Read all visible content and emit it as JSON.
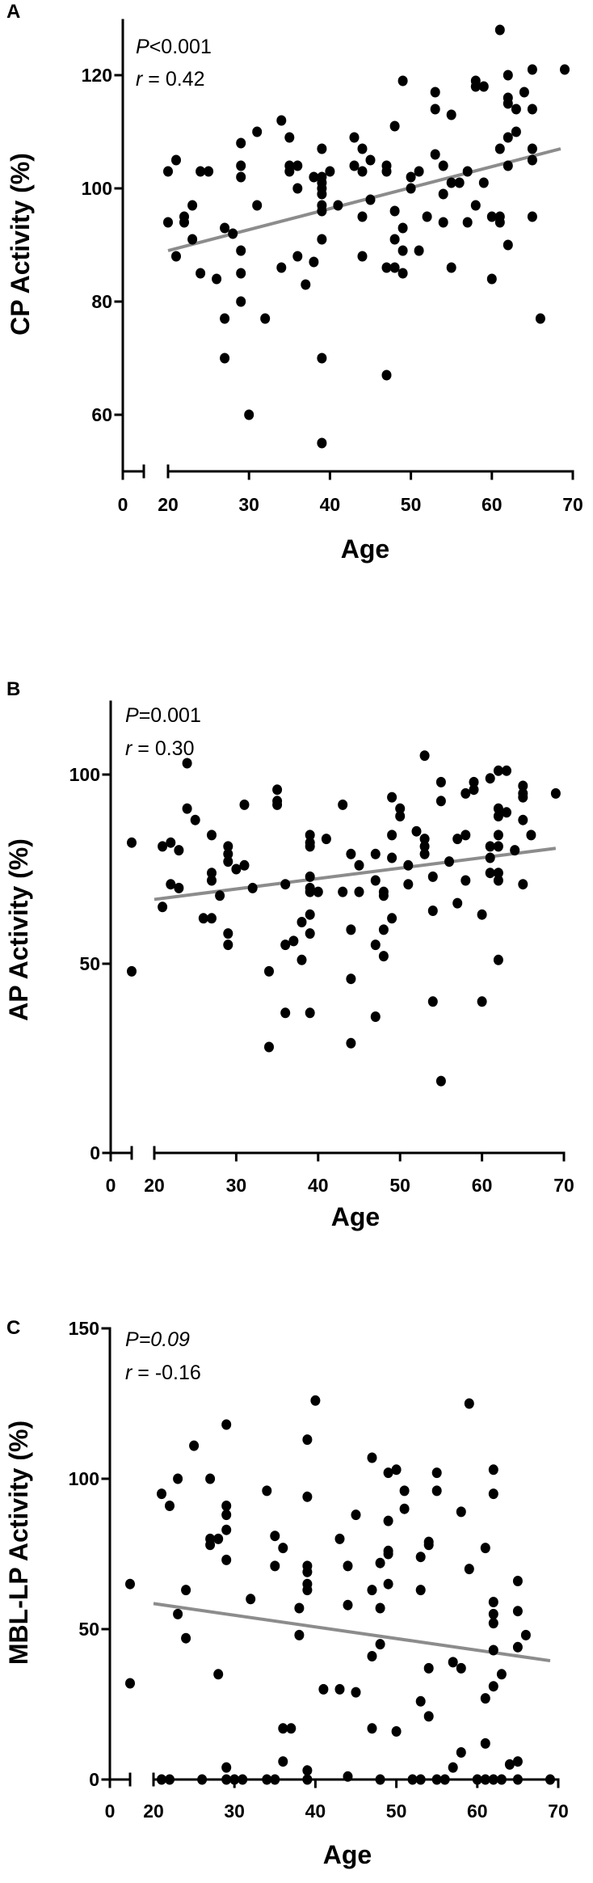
{
  "figure": {
    "panels": [
      "A",
      "B",
      "C"
    ]
  },
  "chart_data": [
    {
      "panel": "A",
      "type": "scatter",
      "title": "",
      "xlabel": "Age",
      "ylabel": "CP Activity (%)",
      "annotation": {
        "p_prefix": "P",
        "p_text": "<0.001",
        "p_italic_value": false,
        "r_prefix": "r",
        "r_text": " = 0.42"
      },
      "xticks": [
        0,
        20,
        30,
        40,
        50,
        60,
        70
      ],
      "yticks": [
        60,
        80,
        100,
        120
      ],
      "xlim_break": [
        0,
        20
      ],
      "xlim": [
        20,
        70
      ],
      "ylim": [
        47.5,
        130
      ],
      "grid": false,
      "regression_line": {
        "x": [
          20,
          68.5
        ],
        "y": [
          89,
          107
        ],
        "color": "#8c8c8c"
      },
      "points": [
        [
          20,
          94
        ],
        [
          20,
          103
        ],
        [
          21,
          105
        ],
        [
          21,
          88
        ],
        [
          22,
          95
        ],
        [
          22,
          94
        ],
        [
          23,
          97
        ],
        [
          23,
          91
        ],
        [
          24,
          103
        ],
        [
          24,
          85
        ],
        [
          25,
          103
        ],
        [
          26,
          84
        ],
        [
          27,
          93
        ],
        [
          27,
          77
        ],
        [
          27,
          70
        ],
        [
          28,
          92
        ],
        [
          29,
          108
        ],
        [
          29,
          104
        ],
        [
          29,
          102
        ],
        [
          29,
          89
        ],
        [
          29,
          85
        ],
        [
          29,
          80
        ],
        [
          30,
          60
        ],
        [
          31,
          110
        ],
        [
          31,
          97
        ],
        [
          32,
          77
        ],
        [
          34,
          112
        ],
        [
          34,
          86
        ],
        [
          35,
          109
        ],
        [
          35,
          104
        ],
        [
          35,
          103
        ],
        [
          36,
          104
        ],
        [
          36,
          100
        ],
        [
          36,
          88
        ],
        [
          37,
          83
        ],
        [
          38,
          102
        ],
        [
          38,
          87
        ],
        [
          39,
          107
        ],
        [
          39,
          102
        ],
        [
          39,
          101
        ],
        [
          39,
          100
        ],
        [
          39,
          99
        ],
        [
          39,
          97
        ],
        [
          39,
          96
        ],
        [
          39,
          91
        ],
        [
          39,
          70
        ],
        [
          39,
          55
        ],
        [
          40,
          103
        ],
        [
          41,
          97
        ],
        [
          43,
          109
        ],
        [
          43,
          104
        ],
        [
          44,
          107
        ],
        [
          44,
          103
        ],
        [
          44,
          95
        ],
        [
          44,
          88
        ],
        [
          45,
          105
        ],
        [
          45,
          98
        ],
        [
          47,
          104
        ],
        [
          47,
          103
        ],
        [
          47,
          86
        ],
        [
          47,
          67
        ],
        [
          48,
          111
        ],
        [
          48,
          96
        ],
        [
          48,
          91
        ],
        [
          48,
          86
        ],
        [
          49,
          119
        ],
        [
          49,
          93
        ],
        [
          49,
          89
        ],
        [
          49,
          85
        ],
        [
          50,
          102
        ],
        [
          50,
          100
        ],
        [
          51,
          103
        ],
        [
          51,
          89
        ],
        [
          52,
          95
        ],
        [
          53,
          117
        ],
        [
          53,
          114
        ],
        [
          53,
          106
        ],
        [
          54,
          104
        ],
        [
          54,
          99
        ],
        [
          54,
          94
        ],
        [
          55,
          113
        ],
        [
          55,
          101
        ],
        [
          55,
          86
        ],
        [
          56,
          101
        ],
        [
          57,
          103
        ],
        [
          57,
          94
        ],
        [
          58,
          119
        ],
        [
          58,
          118
        ],
        [
          58,
          97
        ],
        [
          59,
          118
        ],
        [
          59,
          101
        ],
        [
          60,
          95
        ],
        [
          60,
          84
        ],
        [
          61,
          128
        ],
        [
          61,
          107
        ],
        [
          61,
          95
        ],
        [
          61,
          94
        ],
        [
          62,
          120
        ],
        [
          62,
          116
        ],
        [
          62,
          115
        ],
        [
          62,
          109
        ],
        [
          62,
          104
        ],
        [
          62,
          90
        ],
        [
          63,
          114
        ],
        [
          63,
          110
        ],
        [
          64,
          117
        ],
        [
          65,
          121
        ],
        [
          65,
          114
        ],
        [
          65,
          107
        ],
        [
          65,
          105
        ],
        [
          65,
          95
        ],
        [
          66,
          77
        ],
        [
          69,
          121
        ]
      ]
    },
    {
      "panel": "B",
      "type": "scatter",
      "title": "",
      "xlabel": "Age",
      "ylabel": "AP Activity (%)",
      "annotation": {
        "p_prefix": "P",
        "p_text": "=0.001",
        "p_italic_value": false,
        "r_prefix": "r",
        "r_text": " = 0.30"
      },
      "xticks": [
        0,
        20,
        30,
        40,
        50,
        60,
        70
      ],
      "yticks": [
        0,
        50,
        100
      ],
      "xlim_break": [
        0,
        20
      ],
      "xlim": [
        20,
        70
      ],
      "ylim": [
        0,
        120
      ],
      "grid": false,
      "regression_line": {
        "x": [
          20,
          69
        ],
        "y": [
          67,
          80.5
        ],
        "color": "#8c8c8c"
      },
      "points": [
        [
          17,
          82
        ],
        [
          17,
          48
        ],
        [
          21,
          81
        ],
        [
          21,
          65
        ],
        [
          22,
          82
        ],
        [
          22,
          71
        ],
        [
          23,
          80
        ],
        [
          23,
          70
        ],
        [
          24,
          103
        ],
        [
          24,
          91
        ],
        [
          25,
          88
        ],
        [
          26,
          62
        ],
        [
          27,
          84
        ],
        [
          27,
          74
        ],
        [
          27,
          72
        ],
        [
          27,
          62
        ],
        [
          28,
          68
        ],
        [
          29,
          81
        ],
        [
          29,
          79
        ],
        [
          29,
          77
        ],
        [
          29,
          58
        ],
        [
          29,
          55
        ],
        [
          30,
          75
        ],
        [
          31,
          92
        ],
        [
          31,
          76
        ],
        [
          32,
          70
        ],
        [
          34,
          48
        ],
        [
          34,
          28
        ],
        [
          35,
          96
        ],
        [
          35,
          93
        ],
        [
          35,
          92
        ],
        [
          36,
          71
        ],
        [
          36,
          55
        ],
        [
          36,
          37
        ],
        [
          37,
          56
        ],
        [
          38,
          61
        ],
        [
          38,
          51
        ],
        [
          39,
          84
        ],
        [
          39,
          82
        ],
        [
          39,
          81
        ],
        [
          39,
          73
        ],
        [
          39,
          70
        ],
        [
          39,
          69
        ],
        [
          39,
          63
        ],
        [
          39,
          58
        ],
        [
          39,
          37
        ],
        [
          40,
          69
        ],
        [
          41,
          83
        ],
        [
          43,
          92
        ],
        [
          43,
          69
        ],
        [
          44,
          79
        ],
        [
          44,
          59
        ],
        [
          44,
          46
        ],
        [
          44,
          29
        ],
        [
          45,
          76
        ],
        [
          45,
          69
        ],
        [
          47,
          79
        ],
        [
          47,
          72
        ],
        [
          47,
          55
        ],
        [
          47,
          36
        ],
        [
          48,
          69
        ],
        [
          48,
          68
        ],
        [
          48,
          59
        ],
        [
          48,
          52
        ],
        [
          49,
          94
        ],
        [
          49,
          84
        ],
        [
          49,
          78
        ],
        [
          49,
          62
        ],
        [
          50,
          91
        ],
        [
          50,
          89
        ],
        [
          51,
          76
        ],
        [
          51,
          71
        ],
        [
          52,
          85
        ],
        [
          53,
          105
        ],
        [
          53,
          83
        ],
        [
          53,
          81
        ],
        [
          53,
          79
        ],
        [
          54,
          73
        ],
        [
          54,
          64
        ],
        [
          54,
          40
        ],
        [
          55,
          98
        ],
        [
          55,
          93
        ],
        [
          55,
          19
        ],
        [
          56,
          77
        ],
        [
          57,
          83
        ],
        [
          57,
          66
        ],
        [
          58,
          95
        ],
        [
          58,
          84
        ],
        [
          58,
          72
        ],
        [
          59,
          98
        ],
        [
          59,
          96
        ],
        [
          60,
          63
        ],
        [
          60,
          40
        ],
        [
          61,
          99
        ],
        [
          61,
          81
        ],
        [
          61,
          78
        ],
        [
          61,
          74
        ],
        [
          62,
          101
        ],
        [
          62,
          91
        ],
        [
          62,
          89
        ],
        [
          62,
          84
        ],
        [
          62,
          81
        ],
        [
          62,
          74
        ],
        [
          62,
          72
        ],
        [
          62,
          51
        ],
        [
          63,
          101
        ],
        [
          63,
          90
        ],
        [
          64,
          80
        ],
        [
          65,
          97
        ],
        [
          65,
          95
        ],
        [
          65,
          94
        ],
        [
          65,
          88
        ],
        [
          65,
          71
        ],
        [
          66,
          84
        ],
        [
          69,
          95
        ]
      ]
    },
    {
      "panel": "C",
      "type": "scatter",
      "title": "",
      "xlabel": "Age",
      "ylabel": "MBL-LP Activity (%)",
      "annotation": {
        "p_prefix": "P",
        "p_text": "=0.09",
        "p_italic_value": true,
        "r_prefix": "r",
        "r_text": " = -0.16"
      },
      "xticks": [
        0,
        20,
        30,
        40,
        50,
        60,
        70
      ],
      "yticks": [
        0,
        50,
        100,
        150
      ],
      "xlim_break": [
        0,
        20
      ],
      "xlim": [
        20,
        70
      ],
      "ylim": [
        0,
        150
      ],
      "grid": false,
      "regression_line": {
        "x": [
          20,
          69
        ],
        "y": [
          58.5,
          39.5
        ],
        "color": "#8c8c8c"
      },
      "points": [
        [
          17,
          65
        ],
        [
          17,
          32
        ],
        [
          21,
          95
        ],
        [
          21,
          0
        ],
        [
          22,
          91
        ],
        [
          22,
          0
        ],
        [
          23,
          100
        ],
        [
          23,
          55
        ],
        [
          24,
          63
        ],
        [
          24,
          47
        ],
        [
          25,
          111
        ],
        [
          26,
          0
        ],
        [
          27,
          100
        ],
        [
          27,
          80
        ],
        [
          27,
          78
        ],
        [
          28,
          80
        ],
        [
          28,
          35
        ],
        [
          29,
          118
        ],
        [
          29,
          91
        ],
        [
          29,
          88
        ],
        [
          29,
          83
        ],
        [
          29,
          73
        ],
        [
          29,
          4
        ],
        [
          29,
          0
        ],
        [
          30,
          0
        ],
        [
          31,
          0
        ],
        [
          32,
          60
        ],
        [
          34,
          96
        ],
        [
          34,
          0
        ],
        [
          35,
          81
        ],
        [
          35,
          71
        ],
        [
          35,
          0
        ],
        [
          36,
          77
        ],
        [
          36,
          17
        ],
        [
          36,
          6
        ],
        [
          37,
          17
        ],
        [
          38,
          57
        ],
        [
          38,
          48
        ],
        [
          39,
          113
        ],
        [
          39,
          94
        ],
        [
          39,
          71
        ],
        [
          39,
          69
        ],
        [
          39,
          65
        ],
        [
          39,
          63
        ],
        [
          39,
          3
        ],
        [
          39,
          0
        ],
        [
          40,
          126
        ],
        [
          41,
          30
        ],
        [
          43,
          80
        ],
        [
          43,
          30
        ],
        [
          44,
          71
        ],
        [
          44,
          58
        ],
        [
          44,
          1
        ],
        [
          45,
          88
        ],
        [
          45,
          29
        ],
        [
          47,
          107
        ],
        [
          47,
          63
        ],
        [
          47,
          41
        ],
        [
          47,
          17
        ],
        [
          48,
          72
        ],
        [
          48,
          57
        ],
        [
          48,
          45
        ],
        [
          48,
          0
        ],
        [
          49,
          102
        ],
        [
          49,
          86
        ],
        [
          49,
          76
        ],
        [
          49,
          75
        ],
        [
          49,
          65
        ],
        [
          50,
          103
        ],
        [
          50,
          16
        ],
        [
          51,
          96
        ],
        [
          51,
          90
        ],
        [
          52,
          0
        ],
        [
          53,
          74
        ],
        [
          53,
          63
        ],
        [
          53,
          26
        ],
        [
          53,
          0
        ],
        [
          54,
          79
        ],
        [
          54,
          78
        ],
        [
          54,
          37
        ],
        [
          54,
          21
        ],
        [
          55,
          102
        ],
        [
          55,
          96
        ],
        [
          55,
          0
        ],
        [
          56,
          0
        ],
        [
          57,
          39
        ],
        [
          57,
          4
        ],
        [
          58,
          89
        ],
        [
          58,
          37
        ],
        [
          58,
          9
        ],
        [
          59,
          125
        ],
        [
          59,
          70
        ],
        [
          60,
          0
        ],
        [
          61,
          77
        ],
        [
          61,
          27
        ],
        [
          61,
          12
        ],
        [
          61,
          0
        ],
        [
          62,
          103
        ],
        [
          62,
          95
        ],
        [
          62,
          59
        ],
        [
          62,
          55
        ],
        [
          62,
          52
        ],
        [
          62,
          43
        ],
        [
          62,
          31
        ],
        [
          62,
          0
        ],
        [
          63,
          35
        ],
        [
          63,
          0
        ],
        [
          64,
          5
        ],
        [
          65,
          66
        ],
        [
          65,
          56
        ],
        [
          65,
          44
        ],
        [
          65,
          6
        ],
        [
          65,
          0
        ],
        [
          66,
          48
        ],
        [
          69,
          0
        ]
      ]
    }
  ]
}
